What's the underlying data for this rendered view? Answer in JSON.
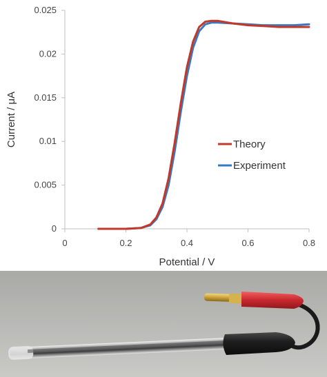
{
  "chart_data": {
    "type": "line",
    "title": "",
    "xlabel": "Potential / V",
    "ylabel": "Current / μA",
    "xlim": [
      0,
      0.8
    ],
    "ylim": [
      0,
      0.025
    ],
    "x_ticks": [
      "0",
      "0.2",
      "0.4",
      "0.6",
      "0.8"
    ],
    "x_tick_values": [
      0,
      0.2,
      0.4,
      0.6,
      0.8
    ],
    "y_ticks": [
      "0",
      "0.005",
      "0.01",
      "0.015",
      "0.02",
      "0.025"
    ],
    "y_tick_values": [
      0,
      0.005,
      0.01,
      0.015,
      0.02,
      0.025
    ],
    "grid": false,
    "legend_position": "center-right",
    "series": [
      {
        "name": "Theory",
        "color": "#c0392b",
        "x": [
          0.11,
          0.2,
          0.25,
          0.28,
          0.3,
          0.32,
          0.34,
          0.36,
          0.38,
          0.4,
          0.42,
          0.44,
          0.46,
          0.48,
          0.5,
          0.55,
          0.6,
          0.65,
          0.7,
          0.75,
          0.8
        ],
        "y": [
          0,
          0,
          0.0001,
          0.0005,
          0.0013,
          0.0029,
          0.0058,
          0.0099,
          0.0144,
          0.0185,
          0.0214,
          0.0231,
          0.0237,
          0.0238,
          0.0238,
          0.0235,
          0.0233,
          0.0232,
          0.0231,
          0.0231,
          0.0231
        ]
      },
      {
        "name": "Experiment",
        "color": "#3a78c2",
        "x": [
          0.11,
          0.2,
          0.25,
          0.28,
          0.3,
          0.32,
          0.34,
          0.36,
          0.38,
          0.4,
          0.42,
          0.44,
          0.46,
          0.48,
          0.5,
          0.55,
          0.6,
          0.65,
          0.7,
          0.75,
          0.8
        ],
        "y": [
          0,
          0,
          0.0001,
          0.0004,
          0.0011,
          0.0025,
          0.005,
          0.0089,
          0.0134,
          0.0175,
          0.0207,
          0.0226,
          0.0234,
          0.0236,
          0.0236,
          0.0235,
          0.0234,
          0.0233,
          0.0233,
          0.0233,
          0.0234
        ]
      }
    ]
  },
  "photo": {
    "subject": "electrode-with-banana-plug-connector",
    "colors": {
      "background": "#b9b9b6",
      "tube_glass": "#d8d8d8",
      "tube_core": "#3a3a3a",
      "handle": "#222222",
      "plug": "#c8282e",
      "pin": "#c9a13a"
    }
  }
}
